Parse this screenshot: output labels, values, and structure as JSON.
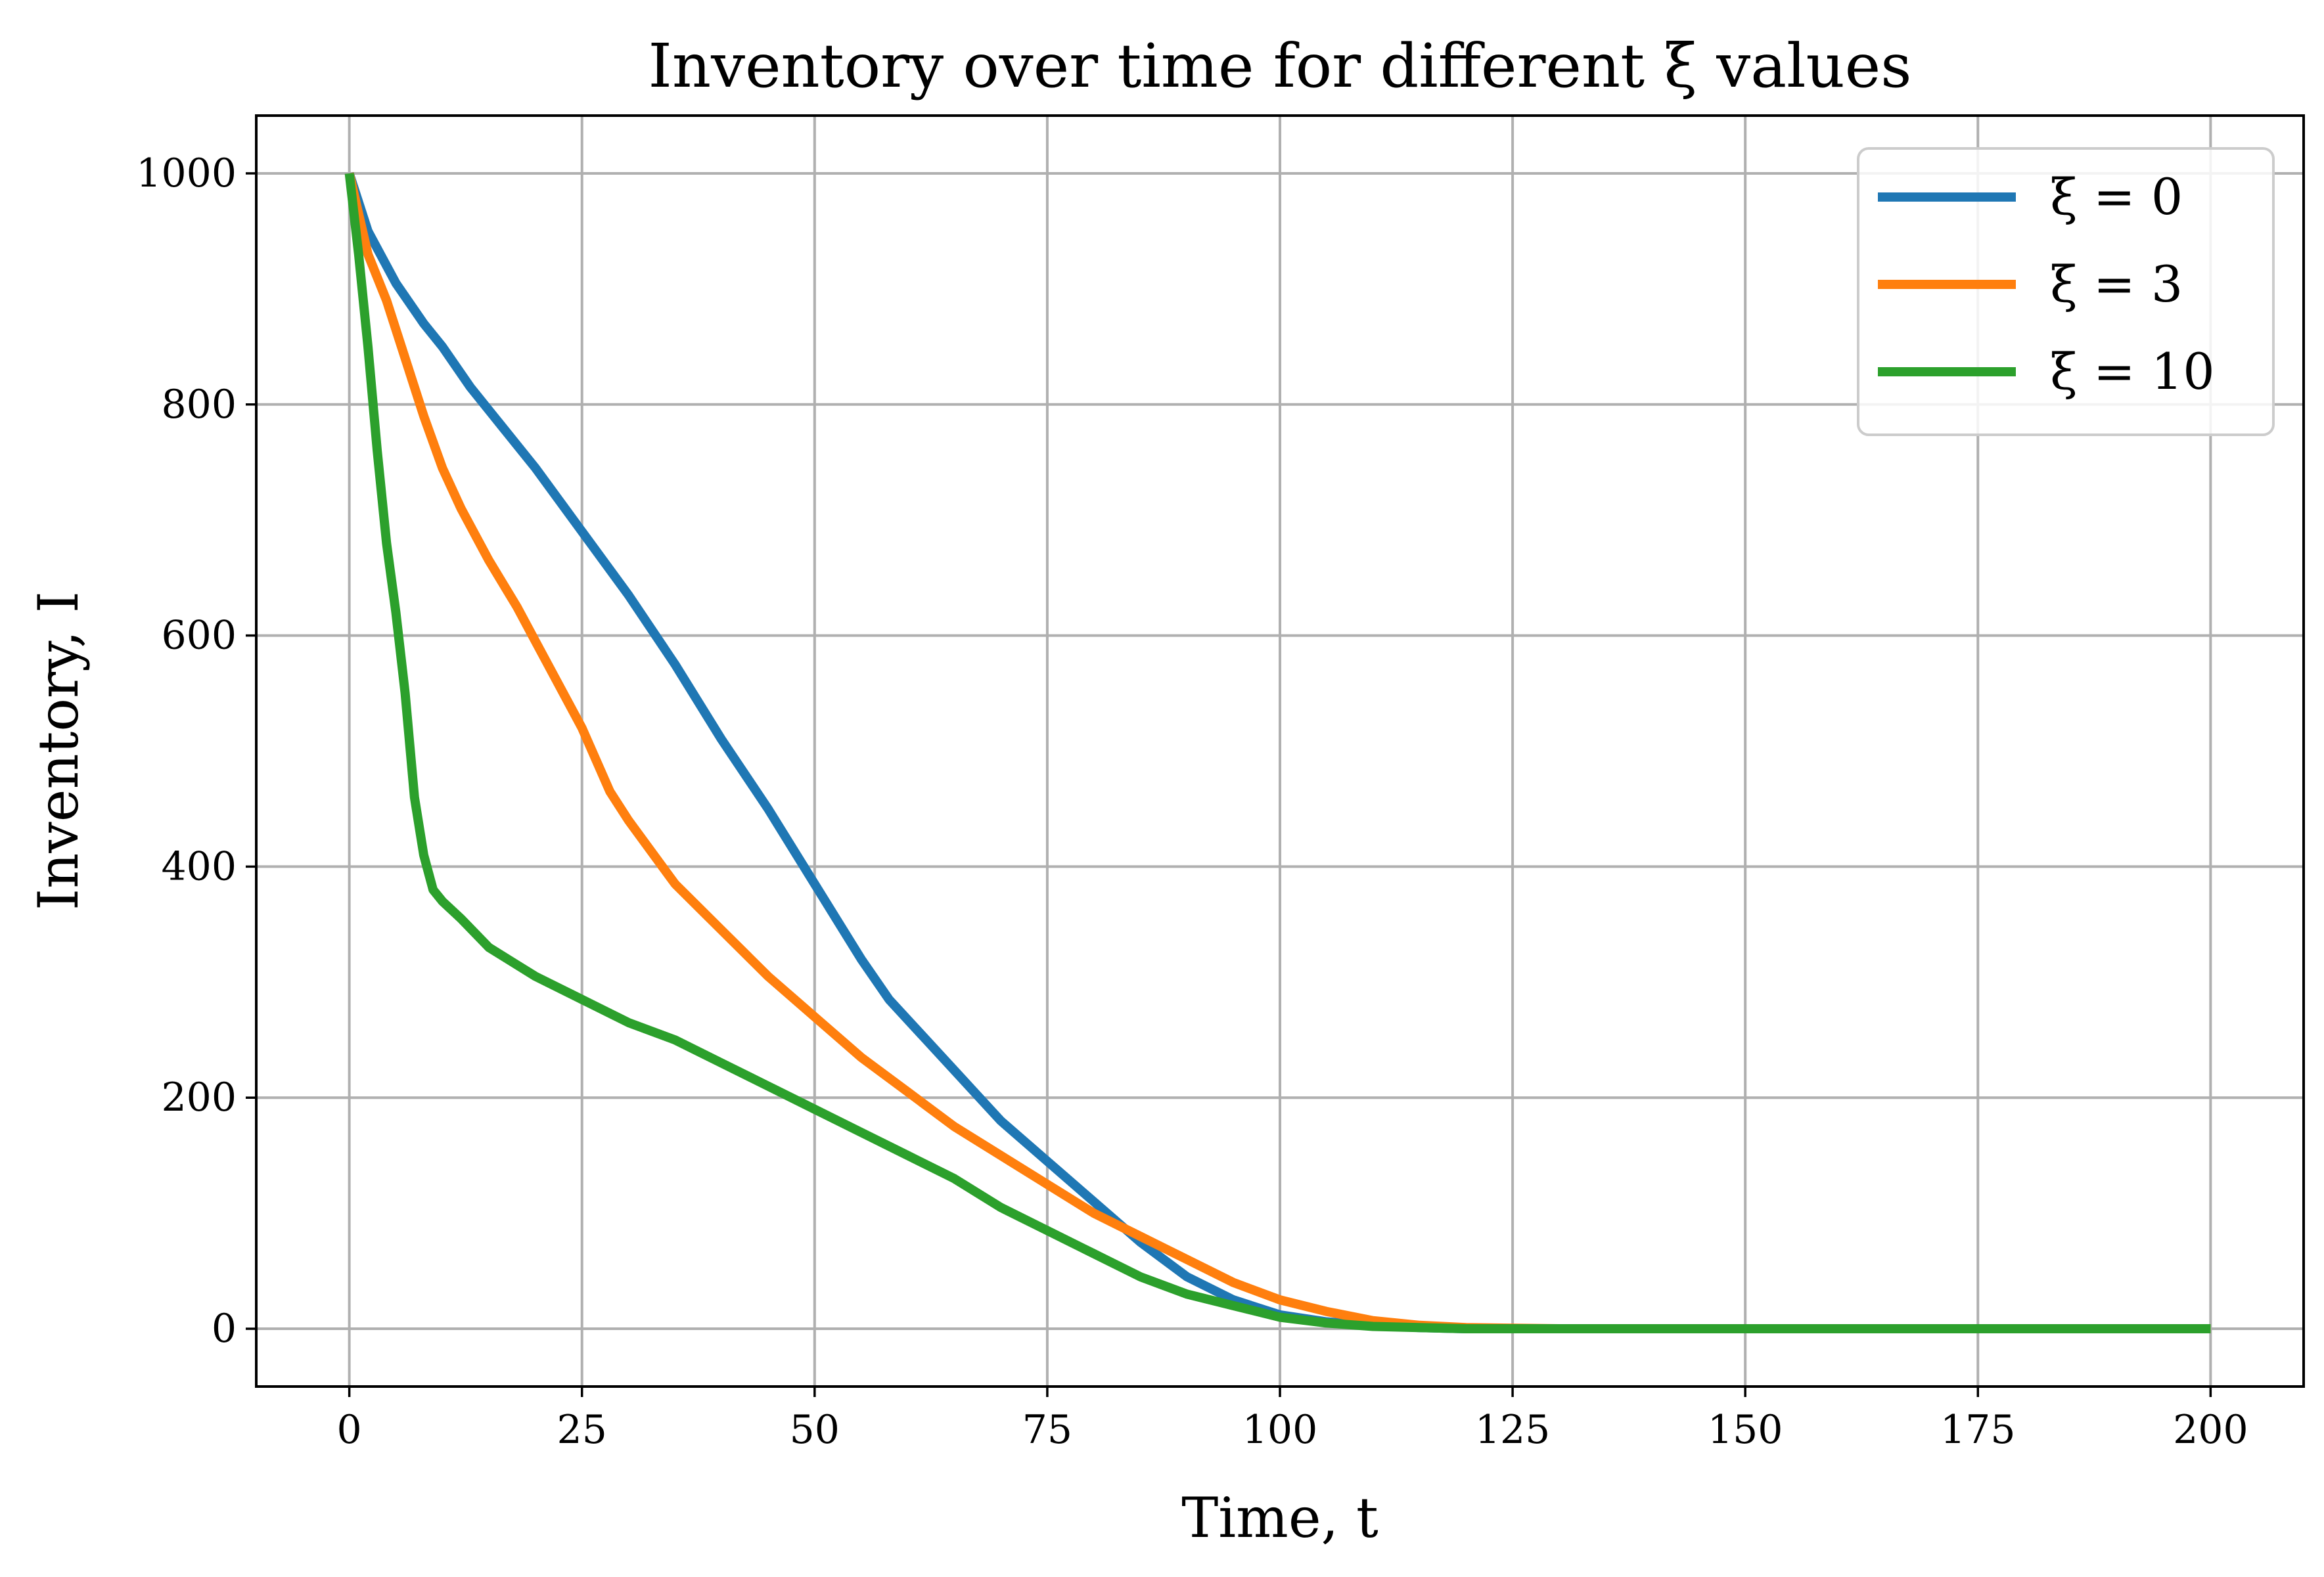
{
  "chart_data": {
    "type": "line",
    "title": "Inventory over time for different ξ values",
    "xlabel": "Time, t",
    "ylabel": "Inventory, I",
    "xlim": [
      -10,
      210
    ],
    "ylim": [
      -50,
      1050
    ],
    "xticks": [
      0,
      25,
      50,
      75,
      100,
      125,
      150,
      175,
      200
    ],
    "yticks": [
      0,
      200,
      400,
      600,
      800,
      1000
    ],
    "grid": true,
    "legend_position": "top-right",
    "series": [
      {
        "name": "ξ = 0",
        "color": "#1f77b4",
        "x": [
          0,
          2,
          5,
          8,
          10,
          13,
          16,
          20,
          25,
          30,
          35,
          40,
          45,
          50,
          55,
          58,
          62,
          66,
          70,
          75,
          80,
          85,
          90,
          95,
          100,
          105,
          110,
          115,
          120,
          130,
          150,
          200
        ],
        "y": [
          1000,
          950,
          905,
          870,
          850,
          815,
          785,
          745,
          690,
          635,
          575,
          510,
          450,
          385,
          320,
          285,
          250,
          215,
          180,
          145,
          110,
          75,
          45,
          25,
          12,
          6,
          3,
          1,
          0,
          0,
          0,
          0
        ]
      },
      {
        "name": "ξ = 3",
        "color": "#ff7f0e",
        "x": [
          0,
          2,
          4,
          6,
          8,
          10,
          12,
          15,
          18,
          20,
          25,
          28,
          30,
          35,
          40,
          45,
          50,
          55,
          60,
          65,
          70,
          75,
          80,
          85,
          90,
          95,
          100,
          105,
          110,
          115,
          120,
          130,
          150,
          200
        ],
        "y": [
          1000,
          930,
          890,
          840,
          790,
          745,
          710,
          665,
          625,
          595,
          520,
          465,
          440,
          385,
          345,
          305,
          270,
          235,
          205,
          175,
          150,
          125,
          100,
          80,
          60,
          40,
          25,
          15,
          7,
          3,
          1,
          0,
          0,
          0
        ]
      },
      {
        "name": "ξ = 10",
        "color": "#2ca02c",
        "x": [
          0,
          1,
          2,
          3,
          4,
          5,
          6,
          7,
          8,
          9,
          10,
          12,
          15,
          18,
          20,
          25,
          30,
          35,
          40,
          45,
          50,
          55,
          60,
          65,
          70,
          75,
          80,
          85,
          90,
          95,
          100,
          105,
          110,
          115,
          120,
          130,
          150,
          200
        ],
        "y": [
          1000,
          930,
          850,
          760,
          680,
          620,
          550,
          460,
          410,
          380,
          370,
          355,
          330,
          315,
          305,
          285,
          265,
          250,
          230,
          210,
          190,
          170,
          150,
          130,
          105,
          85,
          65,
          45,
          30,
          20,
          10,
          5,
          2,
          1,
          0,
          0,
          0,
          0
        ]
      }
    ]
  }
}
